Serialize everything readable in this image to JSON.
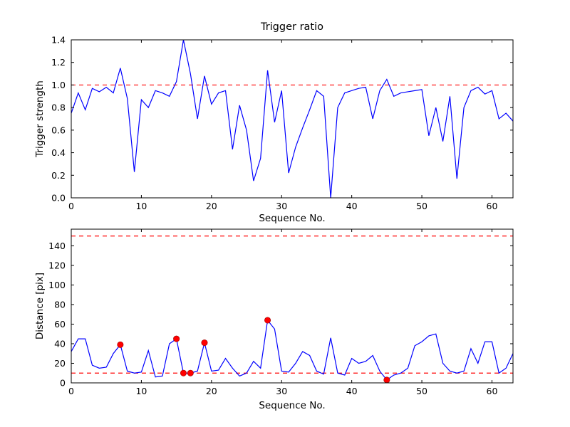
{
  "figure": {
    "background": "#ffffff",
    "line_color": "#0000ff",
    "threshold_color": "#ff0000",
    "marker_color": "#ff0000",
    "axis_color": "#000000"
  },
  "chart_data": [
    {
      "type": "line",
      "name": "trigger-strength",
      "title": "Trigger ratio",
      "xlabel": "Sequence No.",
      "ylabel": "Trigger strength",
      "xlim": [
        0,
        63
      ],
      "ylim": [
        0.0,
        1.4
      ],
      "xticks": [
        0,
        10,
        20,
        30,
        40,
        50,
        60
      ],
      "xticklabels": [
        "0",
        "10",
        "20",
        "30",
        "40",
        "50",
        "60"
      ],
      "yticks": [
        0.0,
        0.2,
        0.4,
        0.6,
        0.8,
        1.0,
        1.2,
        1.4
      ],
      "yticklabels": [
        "0.0",
        "0.2",
        "0.4",
        "0.6",
        "0.8",
        "1.0",
        "1.2",
        "1.4"
      ],
      "grid": false,
      "legend": null,
      "thresholds": [
        1.0
      ],
      "x": [
        0,
        1,
        2,
        3,
        4,
        5,
        6,
        7,
        8,
        9,
        10,
        11,
        12,
        13,
        14,
        15,
        16,
        17,
        18,
        19,
        20,
        21,
        22,
        23,
        24,
        25,
        26,
        27,
        28,
        29,
        30,
        31,
        32,
        33,
        34,
        35,
        36,
        37,
        38,
        39,
        40,
        41,
        42,
        43,
        44,
        45,
        46,
        47,
        48,
        49,
        50,
        51,
        52,
        53,
        54,
        55,
        56,
        57,
        58,
        59,
        60,
        61,
        62,
        63
      ],
      "y": [
        0.75,
        0.93,
        0.78,
        0.97,
        0.94,
        0.98,
        0.93,
        1.15,
        0.88,
        0.23,
        0.87,
        0.8,
        0.95,
        0.93,
        0.9,
        1.03,
        1.4,
        1.1,
        0.7,
        1.08,
        0.83,
        0.93,
        0.95,
        0.43,
        0.82,
        0.6,
        0.15,
        0.35,
        1.13,
        0.67,
        0.95,
        0.22,
        0.45,
        0.62,
        0.78,
        0.95,
        0.9,
        0.0,
        0.8,
        0.93,
        0.95,
        0.97,
        0.98,
        0.7,
        0.95,
        1.05,
        0.9,
        0.93,
        0.94,
        0.95,
        0.96,
        0.55,
        0.8,
        0.5,
        0.9,
        0.17,
        0.8,
        0.95,
        0.98,
        0.92,
        0.95,
        0.7,
        0.75,
        0.68
      ],
      "markers": []
    },
    {
      "type": "line",
      "name": "distance",
      "title": "",
      "xlabel": "Sequence No.",
      "ylabel": "Distance [pix]",
      "xlim": [
        0,
        63
      ],
      "ylim": [
        0,
        157
      ],
      "xticks": [
        0,
        10,
        20,
        30,
        40,
        50,
        60
      ],
      "xticklabels": [
        "0",
        "10",
        "20",
        "30",
        "40",
        "50",
        "60"
      ],
      "yticks": [
        0,
        20,
        40,
        60,
        80,
        100,
        120,
        140
      ],
      "yticklabels": [
        "0",
        "20",
        "40",
        "60",
        "80",
        "100",
        "120",
        "140"
      ],
      "grid": false,
      "legend": null,
      "thresholds": [
        150,
        10
      ],
      "x": [
        0,
        1,
        2,
        3,
        4,
        5,
        6,
        7,
        8,
        9,
        10,
        11,
        12,
        13,
        14,
        15,
        16,
        17,
        18,
        19,
        20,
        21,
        22,
        23,
        24,
        25,
        26,
        27,
        28,
        29,
        30,
        31,
        32,
        33,
        34,
        35,
        36,
        37,
        38,
        39,
        40,
        41,
        42,
        43,
        44,
        45,
        46,
        47,
        48,
        49,
        50,
        51,
        52,
        53,
        54,
        55,
        56,
        57,
        58,
        59,
        60,
        61,
        62,
        63
      ],
      "y": [
        32,
        45,
        45,
        18,
        15,
        16,
        30,
        39,
        12,
        10,
        11,
        33,
        6,
        7,
        40,
        45,
        10,
        10,
        12,
        41,
        12,
        13,
        25,
        15,
        7,
        10,
        22,
        15,
        64,
        55,
        12,
        11,
        20,
        32,
        28,
        12,
        9,
        46,
        10,
        8,
        25,
        20,
        22,
        28,
        12,
        3,
        8,
        10,
        15,
        38,
        42,
        48,
        50,
        20,
        12,
        10,
        12,
        35,
        20,
        42,
        42,
        10,
        15,
        30
      ],
      "markers": [
        {
          "x": 7,
          "y": 39
        },
        {
          "x": 15,
          "y": 45
        },
        {
          "x": 16,
          "y": 10
        },
        {
          "x": 17,
          "y": 10
        },
        {
          "x": 19,
          "y": 41
        },
        {
          "x": 28,
          "y": 64
        },
        {
          "x": 45,
          "y": 3
        }
      ]
    }
  ]
}
